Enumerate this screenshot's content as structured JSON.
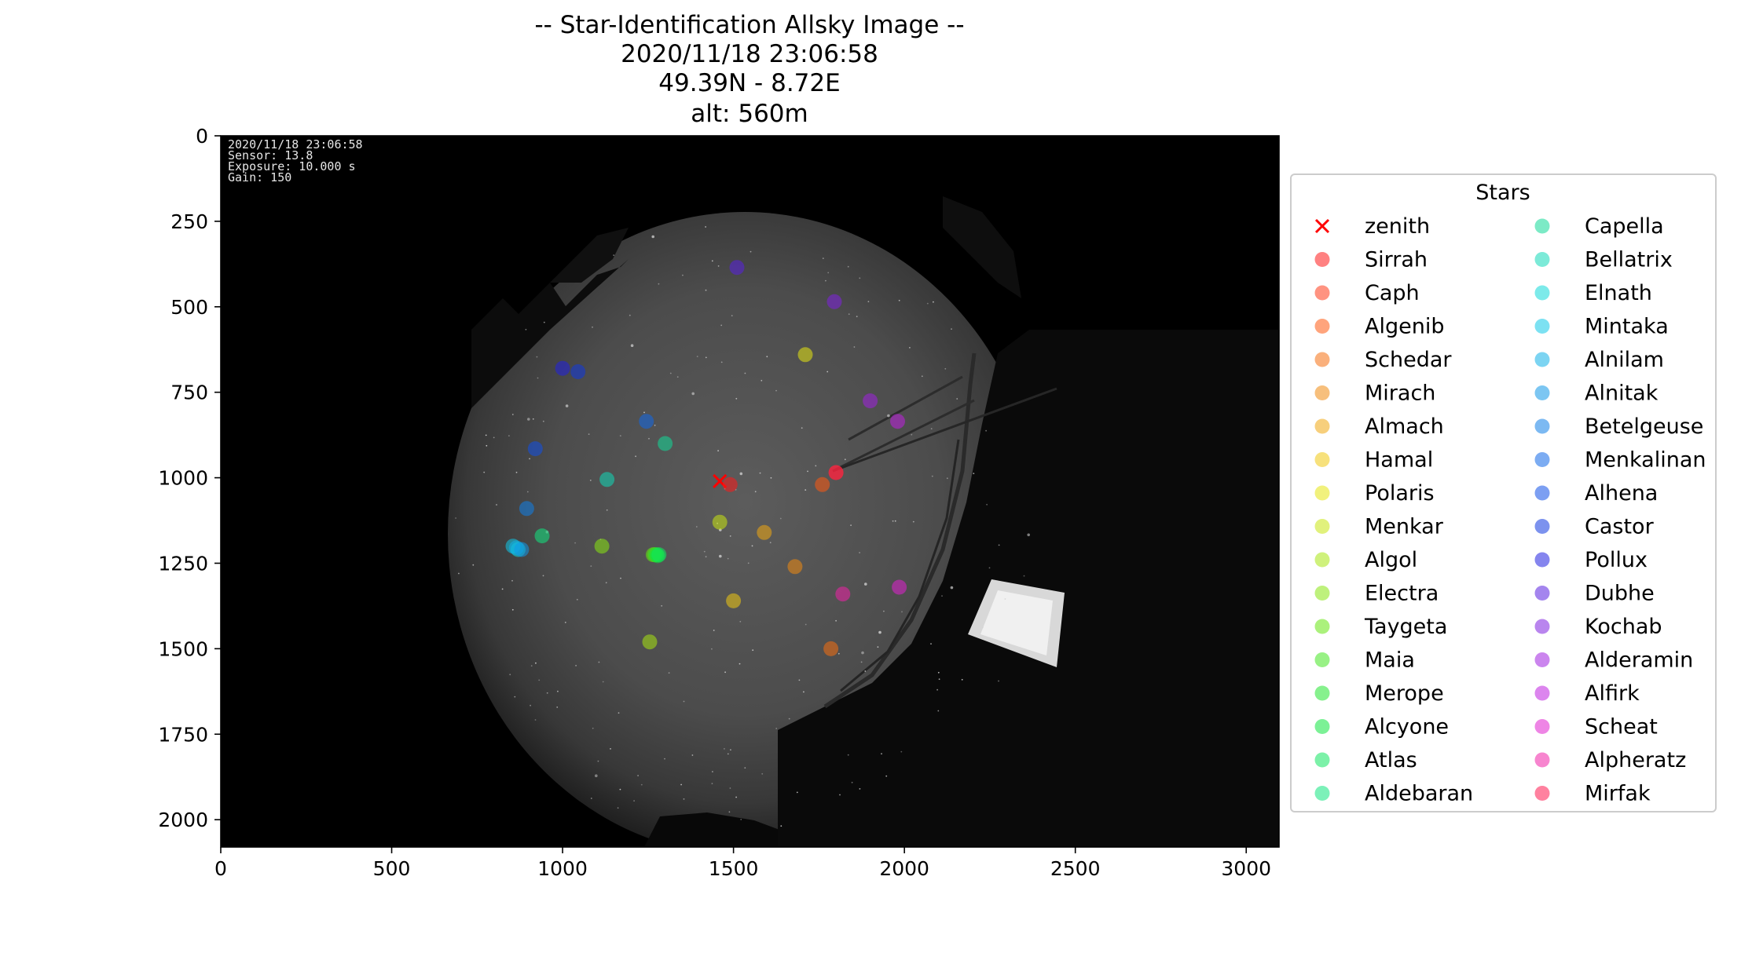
{
  "chart_data": {
    "type": "scatter",
    "title": "-- Star-Identification Allsky Image --",
    "subtitle_lines": [
      "2020/11/18 23:06:58",
      "49.39N - 8.72E",
      "alt: 560m"
    ],
    "xlim": [
      0,
      3096
    ],
    "ylim": [
      2080,
      0
    ],
    "x_ticks": [
      0,
      500,
      1000,
      1500,
      2000,
      2500,
      3000
    ],
    "y_ticks": [
      0,
      250,
      500,
      750,
      1000,
      1250,
      1500,
      1750,
      2000
    ],
    "grid": false,
    "legend": {
      "title": "Stars",
      "placement": "right",
      "columns": 2
    },
    "image_stamp": [
      "2020/11/18 23:06:58",
      "Sensor: 13.8",
      "Exposure: 10.000 s",
      "Gain: 150"
    ],
    "series": [
      {
        "name": "zenith",
        "marker": "x",
        "color": "#ff0000",
        "x": 1460,
        "y": 1010
      },
      {
        "name": "Sirrah",
        "color": "#ff1a1a",
        "x": 1490,
        "y": 1020
      },
      {
        "name": "Caph",
        "color": "#ff3a1a",
        "x": 1800,
        "y": 985
      },
      {
        "name": "Algenib",
        "color": "#ff5a10",
        "x": 1760,
        "y": 1020
      },
      {
        "name": "Schedar",
        "color": "#f57010",
        "x": 1785,
        "y": 1500
      },
      {
        "name": "Mirach",
        "color": "#f08a10",
        "x": 1680,
        "y": 1260
      },
      {
        "name": "Almach",
        "color": "#f0a810",
        "x": 1590,
        "y": 1160
      },
      {
        "name": "Hamal",
        "color": "#f0c810",
        "x": 1500,
        "y": 1360
      },
      {
        "name": "Polaris",
        "color": "#e6e610",
        "x": 1710,
        "y": 640
      },
      {
        "name": "Menkar",
        "color": "#c8e610",
        "x": 1460,
        "y": 1130
      },
      {
        "name": "Algol",
        "color": "#a8e610",
        "x": 1255,
        "y": 1480
      },
      {
        "name": "Electra",
        "color": "#88e610",
        "x": 1115,
        "y": 1200
      },
      {
        "name": "Taygeta",
        "color": "#66e610",
        "x": 1265,
        "y": 1225
      },
      {
        "name": "Maia",
        "color": "#44e620",
        "x": 1270,
        "y": 1225
      },
      {
        "name": "Merope",
        "color": "#22e630",
        "x": 1275,
        "y": 1225
      },
      {
        "name": "Alcyone",
        "color": "#10e640",
        "x": 1278,
        "y": 1228
      },
      {
        "name": "Atlas",
        "color": "#10e660",
        "x": 1282,
        "y": 1225
      },
      {
        "name": "Aldebaran",
        "color": "#10e680",
        "x": 940,
        "y": 1170
      },
      {
        "name": "Capella",
        "color": "#10d898",
        "x": 1300,
        "y": 900
      },
      {
        "name": "Bellatrix",
        "color": "#10d8b8",
        "x": 1130,
        "y": 1005
      },
      {
        "name": "Elnath",
        "color": "#10d8d8",
        "x": 870,
        "y": 1210
      },
      {
        "name": "Mintaka",
        "color": "#10c8e8",
        "x": 855,
        "y": 1200
      },
      {
        "name": "Alnilam",
        "color": "#10b0e8",
        "x": 865,
        "y": 1205
      },
      {
        "name": "Alnitak",
        "color": "#1098e8",
        "x": 880,
        "y": 1210
      },
      {
        "name": "Betelgeuse",
        "color": "#1080e8",
        "x": 895,
        "y": 1090
      },
      {
        "name": "Menkalinan",
        "color": "#1068e8",
        "x": 1245,
        "y": 835
      },
      {
        "name": "Alhena",
        "color": "#1050e8",
        "x": 920,
        "y": 915
      },
      {
        "name": "Castor",
        "color": "#1038e0",
        "x": 1045,
        "y": 690
      },
      {
        "name": "Pollux",
        "color": "#2020e0",
        "x": 1000,
        "y": 680
      },
      {
        "name": "Dubhe",
        "color": "#5a20e0",
        "x": 1510,
        "y": 385
      },
      {
        "name": "Kochab",
        "color": "#8020e0",
        "x": 1795,
        "y": 485
      },
      {
        "name": "Alderamin",
        "color": "#a020e0",
        "x": 1900,
        "y": 775
      },
      {
        "name": "Alfirk",
        "color": "#c020e0",
        "x": 1980,
        "y": 835
      },
      {
        "name": "Scheat",
        "color": "#e020d0",
        "x": 1985,
        "y": 1320
      },
      {
        "name": "Alpheratz",
        "color": "#f020a8",
        "x": 1820,
        "y": 1340
      },
      {
        "name": "Mirfak",
        "color": "#ff1a50",
        "x": 1800,
        "y": 985
      }
    ]
  }
}
